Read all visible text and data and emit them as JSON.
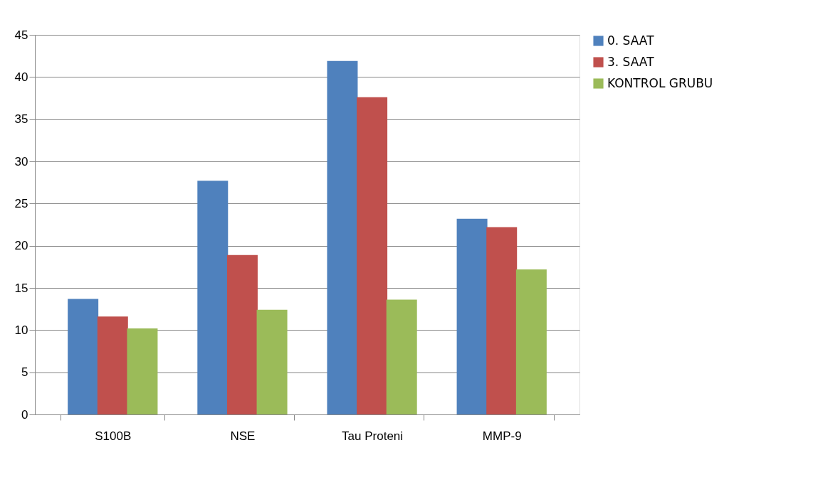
{
  "chart_data": {
    "type": "bar",
    "categories": [
      "S100B",
      "NSE",
      "Tau Proteni",
      "MMP-9"
    ],
    "series": [
      {
        "name": "0. SAAT",
        "color": "#4f81bd",
        "values": [
          13.7,
          27.7,
          41.9,
          23.2
        ]
      },
      {
        "name": "3. SAAT",
        "color": "#c0504d",
        "values": [
          11.6,
          18.9,
          37.6,
          22.2
        ]
      },
      {
        "name": "KONTROL GRUBU",
        "color": "#9bbb59",
        "values": [
          10.2,
          12.4,
          13.6,
          17.2
        ]
      }
    ],
    "ylim": [
      0,
      45
    ],
    "yticks": [
      0,
      5,
      10,
      15,
      20,
      25,
      30,
      35,
      40,
      45
    ],
    "grid": "y",
    "legend": "right"
  }
}
